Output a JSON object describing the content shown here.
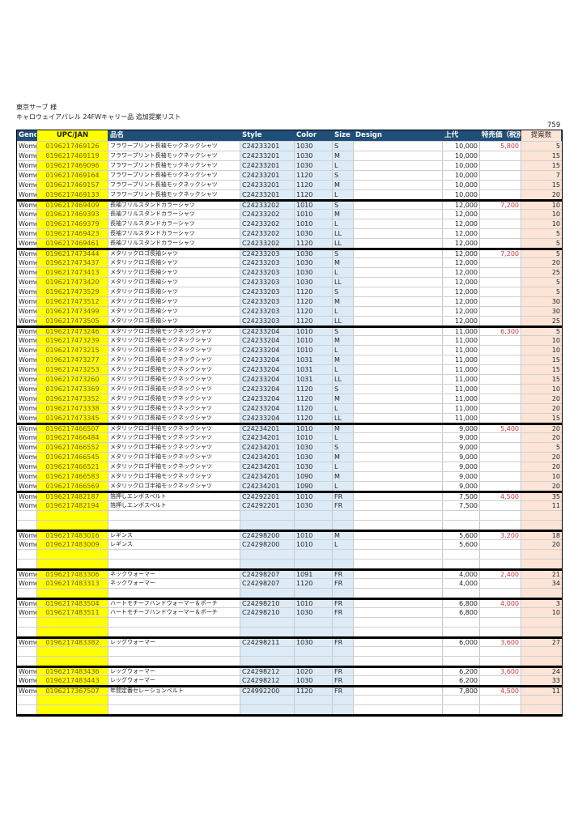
{
  "header": {
    "customer": "東京サーブ 様",
    "subtitle": "キャロウェイアパレル 24FWキャリー品 追加提案リスト",
    "total": "759"
  },
  "columns": [
    "Gend",
    "UPC/JAN",
    "品名",
    "Style",
    "Color",
    "Size",
    "Design",
    "上代",
    "特売価（税別",
    "提案数"
  ],
  "groups": [
    {
      "design": {
        "type": "shirt",
        "colors": [
          "#1a1a1a",
          "#ffffff",
          "#1b2240",
          "#1b2240"
        ]
      },
      "rows": [
        [
          "Wome",
          "0196217469126",
          "フラワープリント長袖モックネックシャツ",
          "C24233201",
          "1030",
          "S",
          "10,000",
          "5,800",
          "5"
        ],
        [
          "Wome",
          "0196217469119",
          "フラワープリント長袖モックネックシャツ",
          "C24233201",
          "1030",
          "M",
          "10,000",
          "",
          "15"
        ],
        [
          "Wome",
          "0196217469096",
          "フラワープリント長袖モックネックシャツ",
          "C24233201",
          "1030",
          "L",
          "10,000",
          "",
          "15"
        ],
        [
          "Wome",
          "0196217469164",
          "フラワープリント長袖モックネックシャツ",
          "C24233201",
          "1120",
          "S",
          "10,000",
          "",
          "7"
        ],
        [
          "Wome",
          "0196217469157",
          "フラワープリント長袖モックネックシャツ",
          "C24233201",
          "1120",
          "M",
          "10,000",
          "",
          "15"
        ],
        [
          "Wome",
          "0196217469133",
          "フラワープリント長袖モックネックシャツ",
          "C24233201",
          "1120",
          "L",
          "10,000",
          "",
          "20"
        ]
      ]
    },
    {
      "design": {
        "type": "shirt",
        "colors": [
          "#1a1a1a",
          "#ffffff",
          "#1b2240"
        ]
      },
      "rows": [
        [
          "Wome",
          "0196217469409",
          "長袖フリルスタンドカラーシャツ",
          "C24233202",
          "1010",
          "S",
          "12,000",
          "7,200",
          "10"
        ],
        [
          "Wome",
          "0196217469393",
          "長袖フリルスタンドカラーシャツ",
          "C24233202",
          "1010",
          "M",
          "12,000",
          "",
          "10"
        ],
        [
          "Wome",
          "0196217469379",
          "長袖フリルスタンドカラーシャツ",
          "C24233202",
          "1010",
          "L",
          "12,000",
          "",
          "10"
        ],
        [
          "Wome",
          "0196217469423",
          "長袖フリルスタンドカラーシャツ",
          "C24233202",
          "1030",
          "LL",
          "12,000",
          "",
          "5"
        ],
        [
          "Wome",
          "0196217469461",
          "長袖フリルスタンドカラーシャツ",
          "C24233202",
          "1120",
          "LL",
          "12,000",
          "",
          "5"
        ]
      ]
    },
    {
      "design": {
        "type": "shirt",
        "colors": [
          "#ffffff",
          "#3a3a7a",
          "#1a1a1a",
          "#a8b83a",
          "#b8c44a"
        ]
      },
      "rows": [
        [
          "Wome",
          "0196217473444",
          "メタリックロゴ長袖シャツ",
          "C24233203",
          "1030",
          "S",
          "12,000",
          "7,200",
          "5"
        ],
        [
          "Wome",
          "0196217473437",
          "メタリックロゴ長袖シャツ",
          "C24233203",
          "1030",
          "M",
          "12,000",
          "",
          "20"
        ],
        [
          "Wome",
          "0196217473413",
          "メタリックロゴ長袖シャツ",
          "C24233203",
          "1030",
          "L",
          "12,000",
          "",
          "25"
        ],
        [
          "Wome",
          "0196217473420",
          "メタリックロゴ長袖シャツ",
          "C24233203",
          "1030",
          "LL",
          "12,000",
          "",
          "5"
        ],
        [
          "Wome",
          "0196217473529",
          "メタリックロゴ長袖シャツ",
          "C24233203",
          "1120",
          "S",
          "12,000",
          "",
          "5"
        ],
        [
          "Wome",
          "0196217473512",
          "メタリックロゴ長袖シャツ",
          "C24233203",
          "1120",
          "M",
          "12,000",
          "",
          "30"
        ],
        [
          "Wome",
          "0196217473499",
          "メタリックロゴ長袖シャツ",
          "C24233203",
          "1120",
          "L",
          "12,000",
          "",
          "30"
        ],
        [
          "Wome",
          "0196217473505",
          "メタリックロゴ長袖シャツ",
          "C24233203",
          "1120",
          "LL",
          "12,000",
          "",
          "25"
        ]
      ]
    },
    {
      "design": {
        "type": "shirt",
        "colors": [
          "#ffffff",
          "#1a1a1a",
          "#e8a0b0",
          "#d890a8",
          "#1b2240",
          "#a8b83a"
        ]
      },
      "rows": [
        [
          "Wome",
          "0196217473246",
          "メタリックロゴ長袖モックネックシャツ",
          "C24233204",
          "1010",
          "S",
          "11,000",
          "6,300",
          "5"
        ],
        [
          "Wome",
          "0196217473239",
          "メタリックロゴ長袖モックネックシャツ",
          "C24233204",
          "1010",
          "M",
          "11,000",
          "",
          "10"
        ],
        [
          "Wome",
          "0196217473215",
          "メタリックロゴ長袖モックネックシャツ",
          "C24233204",
          "1010",
          "L",
          "11,000",
          "",
          "10"
        ],
        [
          "Wome",
          "0196217473277",
          "メタリックロゴ長袖モックネックシャツ",
          "C24233204",
          "1031",
          "M",
          "11,000",
          "",
          "15"
        ],
        [
          "Wome",
          "0196217473253",
          "メタリックロゴ長袖モックネックシャツ",
          "C24233204",
          "1031",
          "L",
          "11,000",
          "",
          "15"
        ],
        [
          "Wome",
          "0196217473260",
          "メタリックロゴ長袖モックネックシャツ",
          "C24233204",
          "1031",
          "LL",
          "11,000",
          "",
          "15"
        ],
        [
          "Wome",
          "0196217473369",
          "メタリックロゴ長袖モックネックシャツ",
          "C24233204",
          "1120",
          "S",
          "11,000",
          "",
          "10"
        ],
        [
          "Wome",
          "0196217473352",
          "メタリックロゴ長袖モックネックシャツ",
          "C24233204",
          "1120",
          "M",
          "11,000",
          "",
          "20"
        ],
        [
          "Wome",
          "0196217473338",
          "メタリックロゴ長袖モックネックシャツ",
          "C24233204",
          "1120",
          "L",
          "11,000",
          "",
          "20"
        ],
        [
          "Wome",
          "0196217473345",
          "メタリックロゴ長袖モックネックシャツ",
          "C24233204",
          "1120",
          "LL",
          "11,000",
          "",
          "15"
        ]
      ]
    },
    {
      "design": {
        "type": "polo",
        "colors": [
          "#1a1a1a",
          "#d02a7a",
          "#ffffff",
          "#2a4a2a"
        ]
      },
      "rows": [
        [
          "Wome",
          "0196217466507",
          "メタリックロゴ半袖モックネックシャツ",
          "C24234201",
          "1010",
          "M",
          "9,000",
          "5,400",
          "20"
        ],
        [
          "Wome",
          "0196217466484",
          "メタリックロゴ半袖モックネックシャツ",
          "C24234201",
          "1010",
          "L",
          "9,000",
          "",
          "20"
        ],
        [
          "Wome",
          "0196217466552",
          "メタリックロゴ半袖モックネックシャツ",
          "C24234201",
          "1030",
          "S",
          "9,000",
          "",
          "5"
        ],
        [
          "Wome",
          "0196217466545",
          "メタリックロゴ半袖モックネックシャツ",
          "C24234201",
          "1030",
          "M",
          "9,000",
          "",
          "20"
        ],
        [
          "Wome",
          "0196217466521",
          "メタリックロゴ半袖モックネックシャツ",
          "C24234201",
          "1030",
          "L",
          "9,000",
          "",
          "20"
        ],
        [
          "Wome",
          "0196217466583",
          "メタリックロゴ半袖モックネックシャツ",
          "C24234201",
          "1090",
          "M",
          "9,000",
          "",
          "10"
        ],
        [
          "Wome",
          "0196217466569",
          "メタリックロゴ半袖モックネックシャツ",
          "C24234201",
          "1090",
          "L",
          "9,000",
          "",
          "20"
        ]
      ]
    },
    {
      "design": {
        "type": "belt",
        "colors": [
          "#1a1a1a",
          "#f0f0f0",
          "#d04a7a",
          "#1b2240"
        ]
      },
      "rows": [
        [
          "Wome",
          "0196217482187",
          "箔押しエンボスベルト",
          "C24292201",
          "1010",
          "FR",
          "7,500",
          "4,500",
          "35"
        ],
        [
          "Wome",
          "0196217482194",
          "箔押しエンボスベルト",
          "C24292201",
          "1030",
          "FR",
          "7,500",
          "",
          "11"
        ],
        [],
        []
      ]
    },
    {
      "design": {
        "type": "legging",
        "colors": [
          "#1a1a1a",
          "#1b2240",
          "#1b2240",
          "#26305a"
        ]
      },
      "rows": [
        [
          "Wome",
          "0196217483016",
          "レギンス",
          "C24298200",
          "1010",
          "M",
          "5,600",
          "3,200",
          "18"
        ],
        [
          "Wome",
          "0196217483009",
          "レギンス",
          "C24298200",
          "1010",
          "L",
          "5,600",
          "",
          "20"
        ],
        [],
        []
      ]
    },
    {
      "design": {
        "type": "warmer",
        "colors": [
          "#2a2a2a",
          "#f0f0f0",
          "#b0b0b0",
          "#e0a0b0",
          "#8a9a2a"
        ]
      },
      "rows": [
        [
          "Wome",
          "0196217483306",
          "ネックウォーマー",
          "C24298207",
          "1091",
          "FR",
          "4,000",
          "2,400",
          "21"
        ],
        [
          "Wome",
          "0196217483313",
          "ネックウォーマー",
          "C24298207",
          "1120",
          "FR",
          "4,000",
          "",
          "34"
        ],
        []
      ]
    },
    {
      "design": {
        "type": "pouch",
        "colors": [
          "#2a2420",
          "#f4f0e8"
        ]
      },
      "rows": [
        [
          "Wome",
          "0196217483504",
          "ハートモチーフハンドウォーマー＆ポーチ",
          "C24298210",
          "1010",
          "FR",
          "6,800",
          "4,000",
          "3"
        ],
        [
          "Wome",
          "0196217483511",
          "ハートモチーフハンドウォーマー＆ポーチ",
          "C24298210",
          "1030",
          "FR",
          "6,800",
          "",
          "10"
        ],
        [],
        []
      ]
    },
    {
      "design": {
        "type": "legwarmer",
        "colors": [
          "#1a1a1a",
          "#f0f0f0",
          "#e0b0b8",
          "#9a9a9a",
          "#a8b83a"
        ]
      },
      "rows": [
        [
          "Wome",
          "0196217483382",
          "レッグウォーマー",
          "C24298211",
          "1030",
          "FR",
          "6,000",
          "3,600",
          "27"
        ],
        [],
        []
      ]
    },
    {
      "design": {
        "type": "legwarmer",
        "colors": [
          "#1a1a1a",
          "#9a9a9a",
          "#f0f0f0"
        ]
      },
      "rows": [
        [
          "Wome",
          "0196217483436",
          "レッグウォーマー",
          "C24298212",
          "1020",
          "FR",
          "6,200",
          "3,600",
          "24"
        ],
        [
          "Wome",
          "0196217483443",
          "レッグウォーマー",
          "C24298212",
          "1030",
          "FR",
          "6,200",
          "",
          "33"
        ]
      ]
    },
    {
      "design": {
        "type": "belt",
        "colors": [
          "#1a1a1a",
          "#f0f0f0",
          "#b89a80",
          "#1b2240"
        ]
      },
      "rows": [
        [
          "Wome",
          "0196217367507",
          "年間定番セレーションベルト",
          "C24992200",
          "1120",
          "FR",
          "7,800",
          "4,500",
          "11"
        ],
        [],
        []
      ]
    }
  ]
}
